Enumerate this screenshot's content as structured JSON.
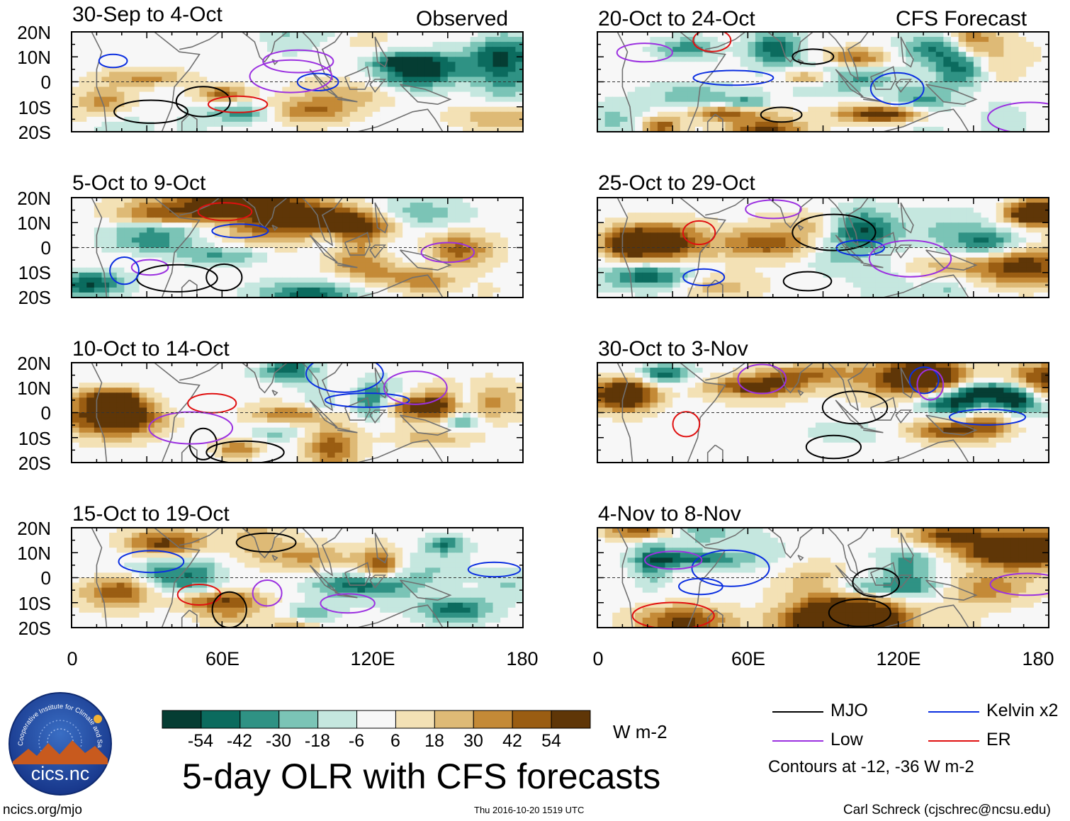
{
  "chart_data": {
    "type": "heatmap",
    "title": "5-day OLR with CFS forecasts",
    "units": "W m-2",
    "colorbar": {
      "ticks": [
        "-54",
        "-42",
        "-30",
        "-18",
        "-6",
        "6",
        "18",
        "30",
        "42",
        "54"
      ],
      "colors": [
        "#053d33",
        "#0b6b5e",
        "#2f9284",
        "#7bc4b6",
        "#c5e7df",
        "#f7f7f7",
        "#f3e1b5",
        "#deba76",
        "#c48a37",
        "#9a5d12",
        "#5f3607"
      ]
    },
    "yticks": [
      "20N",
      "10N",
      "0",
      "10S",
      "20S"
    ],
    "xticks": [
      "0",
      "60E",
      "120E",
      "180"
    ],
    "ylim": [
      -20,
      20
    ],
    "xlim": [
      0,
      180
    ],
    "panels": [
      {
        "id": "p1",
        "title": "30-Sep to 4-Oct",
        "tag": "Observed"
      },
      {
        "id": "p2",
        "title": "5-Oct to 9-Oct",
        "tag": ""
      },
      {
        "id": "p3",
        "title": "10-Oct to 14-Oct",
        "tag": ""
      },
      {
        "id": "p4",
        "title": "15-Oct to 19-Oct",
        "tag": ""
      },
      {
        "id": "p5",
        "title": "20-Oct to 24-Oct",
        "tag": "CFS Forecast"
      },
      {
        "id": "p6",
        "title": "25-Oct to 29-Oct",
        "tag": ""
      },
      {
        "id": "p7",
        "title": "30-Oct to 3-Nov",
        "tag": ""
      },
      {
        "id": "p8",
        "title": "4-Nov to 8-Nov",
        "tag": ""
      }
    ],
    "legend": [
      {
        "label": "MJO",
        "color": "#000000"
      },
      {
        "label": "Kelvin x2",
        "color": "#0a2ee0"
      },
      {
        "label": "Low",
        "color": "#9b30e0"
      },
      {
        "label": "ER",
        "color": "#e01010"
      }
    ],
    "contour_note": "Contours at -12, -36 W m-2"
  },
  "footer": {
    "left": "ncics.org/mjo",
    "center": "Thu 2016-10-20 1519 UTC",
    "right": "Carl Schreck (cjschrec@ncsu.edu)"
  },
  "logo": {
    "text": "cics.nc",
    "arc_text": "Cooperative Institute for Climate and Satellites"
  }
}
